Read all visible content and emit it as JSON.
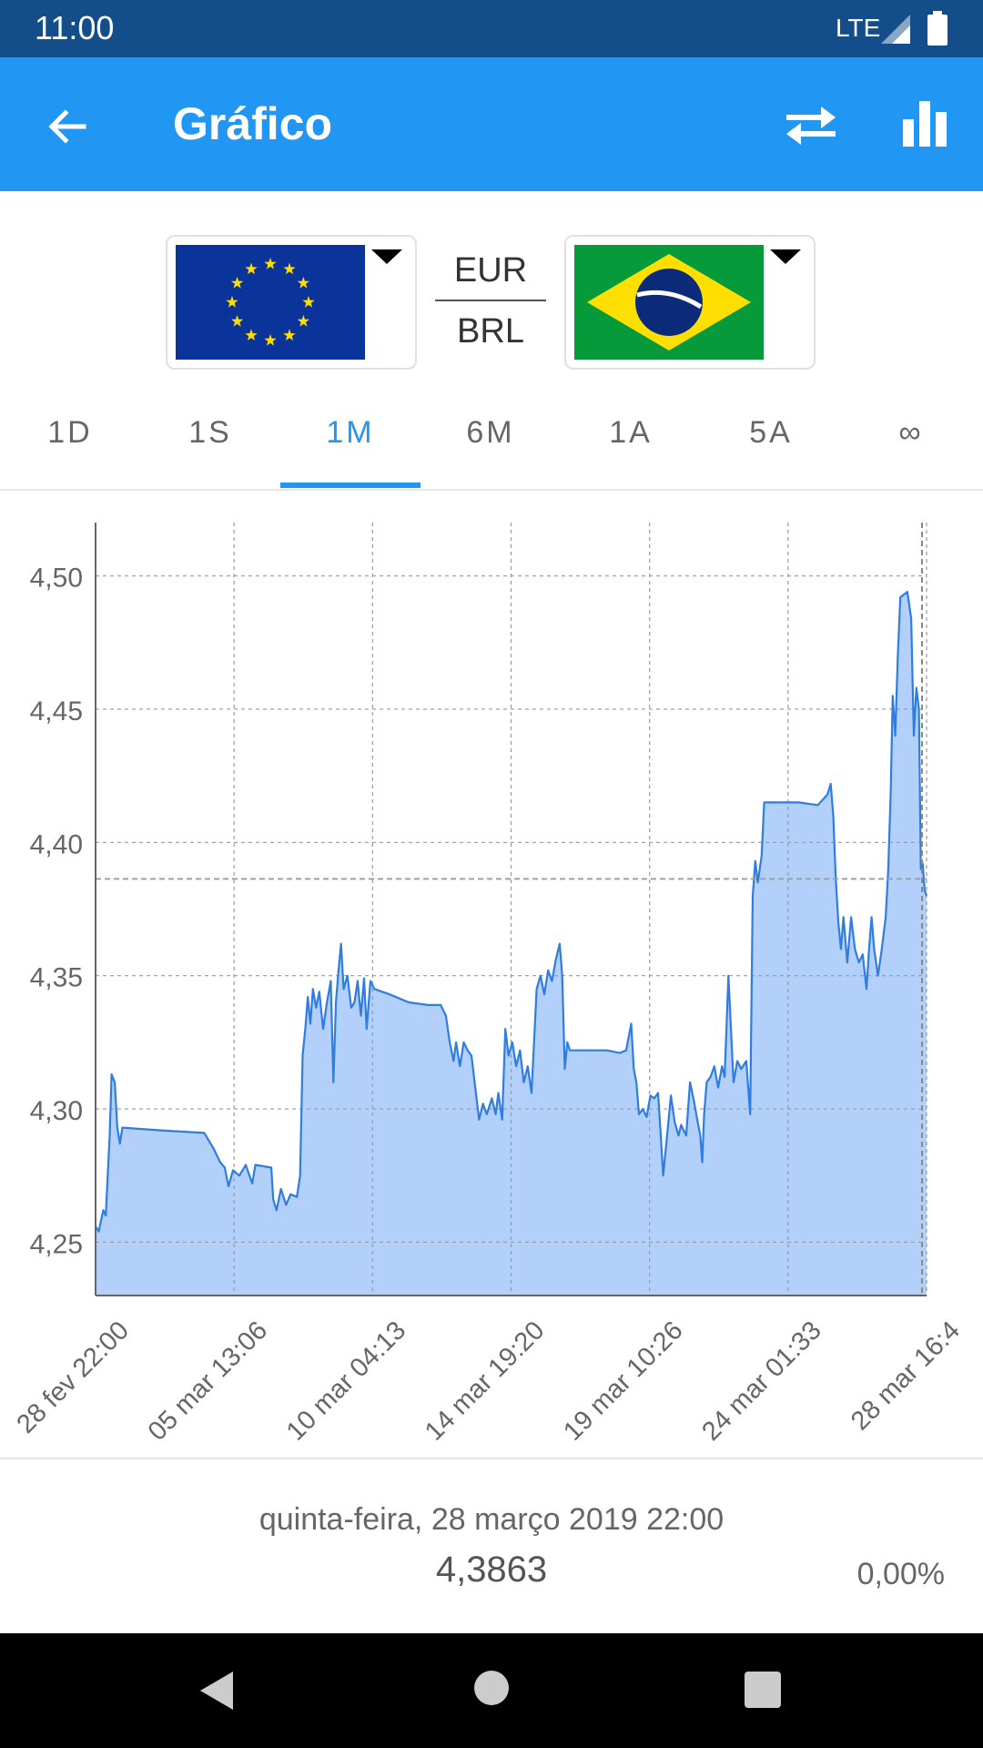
{
  "status": {
    "time": "11:00",
    "network": "LTE"
  },
  "appbar": {
    "title": "Gráfico",
    "back_icon": "arrow-left-icon",
    "swap_icon": "swap-arrows-icon",
    "chart_icon": "bar-chart-icon"
  },
  "currency": {
    "from": {
      "code": "EUR",
      "flag": "eu-flag"
    },
    "to": {
      "code": "BRL",
      "flag": "brazil-flag"
    }
  },
  "tabs": [
    "1D",
    "1S",
    "1M",
    "6M",
    "1A",
    "5A",
    "∞"
  ],
  "active_tab": "1M",
  "colors": {
    "accent": "#2196f3",
    "status_bar": "#134d8a",
    "line": "#2f7de1",
    "fill": "#b3d0fb"
  },
  "chart_data": {
    "type": "area",
    "ylim": [
      4.23,
      4.52
    ],
    "y_ticks": [
      "4,50",
      "4,45",
      "4,40",
      "4,35",
      "4,30",
      "4,25"
    ],
    "x_ticks": [
      "28 fev 22:00",
      "05 mar 13:06",
      "10 mar 04:13",
      "14 mar 19:20",
      "19 mar 10:26",
      "24 mar 01:33",
      "28 mar 16:4"
    ],
    "reference_value": 4.3863,
    "grid": true,
    "series": [
      {
        "values": [
          [
            0,
            4.256
          ],
          [
            0.5,
            4.254
          ],
          [
            1.2,
            4.262
          ],
          [
            1.6,
            4.26
          ],
          [
            2.2,
            4.29
          ],
          [
            2.5,
            4.313
          ],
          [
            3,
            4.31
          ],
          [
            3.4,
            4.293
          ],
          [
            3.8,
            4.287
          ],
          [
            4.2,
            4.293
          ],
          [
            10,
            4.292
          ],
          [
            17,
            4.291
          ],
          [
            18.5,
            4.285
          ],
          [
            19.5,
            4.28
          ],
          [
            20.2,
            4.278
          ],
          [
            20.8,
            4.271
          ],
          [
            21.5,
            4.277
          ],
          [
            22.5,
            4.275
          ],
          [
            23.5,
            4.279
          ],
          [
            24.5,
            4.272
          ],
          [
            25,
            4.279
          ],
          [
            27.5,
            4.278
          ],
          [
            27.8,
            4.266
          ],
          [
            28.3,
            4.262
          ],
          [
            29,
            4.27
          ],
          [
            29.8,
            4.264
          ],
          [
            30.5,
            4.268
          ],
          [
            31.5,
            4.267
          ],
          [
            32,
            4.275
          ],
          [
            32.4,
            4.32
          ],
          [
            32.8,
            4.33
          ],
          [
            33.2,
            4.342
          ],
          [
            33.6,
            4.332
          ],
          [
            34,
            4.345
          ],
          [
            34.5,
            4.338
          ],
          [
            35,
            4.344
          ],
          [
            35.6,
            4.33
          ],
          [
            36.2,
            4.34
          ],
          [
            36.8,
            4.348
          ],
          [
            37.2,
            4.31
          ],
          [
            37.6,
            4.34
          ],
          [
            38,
            4.352
          ],
          [
            38.4,
            4.362
          ],
          [
            38.8,
            4.345
          ],
          [
            39.4,
            4.35
          ],
          [
            40,
            4.338
          ],
          [
            40.5,
            4.34
          ],
          [
            41,
            4.348
          ],
          [
            41.5,
            4.335
          ],
          [
            42,
            4.349
          ],
          [
            42.4,
            4.33
          ],
          [
            43,
            4.348
          ],
          [
            43.6,
            4.345
          ],
          [
            46,
            4.343
          ],
          [
            49,
            4.34
          ],
          [
            52,
            4.339
          ],
          [
            54,
            4.339
          ],
          [
            54.8,
            4.335
          ],
          [
            55.4,
            4.325
          ],
          [
            56,
            4.318
          ],
          [
            56.4,
            4.325
          ],
          [
            57,
            4.316
          ],
          [
            57.6,
            4.325
          ],
          [
            58.2,
            4.322
          ],
          [
            58.8,
            4.32
          ],
          [
            59.4,
            4.308
          ],
          [
            60,
            4.296
          ],
          [
            60.6,
            4.302
          ],
          [
            61.2,
            4.298
          ],
          [
            62,
            4.304
          ],
          [
            62.6,
            4.298
          ],
          [
            63,
            4.306
          ],
          [
            63.6,
            4.296
          ],
          [
            64.1,
            4.33
          ],
          [
            64.6,
            4.32
          ],
          [
            65.2,
            4.325
          ],
          [
            65.8,
            4.316
          ],
          [
            66.4,
            4.322
          ],
          [
            67,
            4.31
          ],
          [
            67.6,
            4.316
          ],
          [
            68.2,
            4.306
          ],
          [
            69,
            4.345
          ],
          [
            69.6,
            4.35
          ],
          [
            70.2,
            4.343
          ],
          [
            70.8,
            4.352
          ],
          [
            71.4,
            4.348
          ],
          [
            72,
            4.356
          ],
          [
            72.6,
            4.362
          ],
          [
            73,
            4.35
          ],
          [
            73.4,
            4.315
          ],
          [
            73.8,
            4.325
          ],
          [
            74.2,
            4.322
          ],
          [
            77,
            4.322
          ],
          [
            80,
            4.322
          ],
          [
            82,
            4.321
          ],
          [
            83,
            4.322
          ],
          [
            83.8,
            4.332
          ],
          [
            84.2,
            4.315
          ],
          [
            84.6,
            4.31
          ],
          [
            85,
            4.298
          ],
          [
            85.6,
            4.3
          ],
          [
            86.2,
            4.297
          ],
          [
            86.8,
            4.305
          ],
          [
            87.4,
            4.304
          ],
          [
            88,
            4.306
          ],
          [
            88.4,
            4.291
          ],
          [
            88.8,
            4.275
          ],
          [
            89.4,
            4.29
          ],
          [
            90,
            4.305
          ],
          [
            90.6,
            4.295
          ],
          [
            91.2,
            4.29
          ],
          [
            91.6,
            4.294
          ],
          [
            92.4,
            4.29
          ],
          [
            93,
            4.31
          ],
          [
            93.6,
            4.303
          ],
          [
            94.2,
            4.295
          ],
          [
            94.6,
            4.29
          ],
          [
            94.9,
            4.28
          ],
          [
            95.2,
            4.298
          ],
          [
            95.6,
            4.31
          ],
          [
            96.2,
            4.312
          ],
          [
            96.8,
            4.316
          ],
          [
            97.4,
            4.308
          ],
          [
            98,
            4.316
          ],
          [
            98.4,
            4.312
          ],
          [
            99,
            4.35
          ],
          [
            99.4,
            4.33
          ],
          [
            99.8,
            4.31
          ],
          [
            100.4,
            4.318
          ],
          [
            101,
            4.315
          ],
          [
            101.8,
            4.318
          ],
          [
            102.4,
            4.298
          ],
          [
            102.8,
            4.38
          ],
          [
            103.2,
            4.393
          ],
          [
            103.6,
            4.385
          ],
          [
            104.2,
            4.395
          ],
          [
            104.6,
            4.415
          ],
          [
            106,
            4.415
          ],
          [
            110,
            4.415
          ],
          [
            113,
            4.414
          ],
          [
            114.5,
            4.418
          ],
          [
            115,
            4.422
          ],
          [
            115.4,
            4.41
          ],
          [
            115.8,
            4.386
          ],
          [
            116.2,
            4.37
          ],
          [
            116.6,
            4.36
          ],
          [
            117,
            4.372
          ],
          [
            117.6,
            4.355
          ],
          [
            118.2,
            4.372
          ],
          [
            118.8,
            4.36
          ],
          [
            119.4,
            4.355
          ],
          [
            120,
            4.358
          ],
          [
            120.6,
            4.345
          ],
          [
            121,
            4.36
          ],
          [
            121.4,
            4.372
          ],
          [
            121.8,
            4.36
          ],
          [
            122.4,
            4.35
          ],
          [
            123,
            4.36
          ],
          [
            123.6,
            4.372
          ],
          [
            124,
            4.39
          ],
          [
            124.4,
            4.42
          ],
          [
            124.7,
            4.455
          ],
          [
            125.1,
            4.44
          ],
          [
            125.5,
            4.47
          ],
          [
            125.9,
            4.492
          ],
          [
            127,
            4.494
          ],
          [
            127.6,
            4.484
          ],
          [
            128,
            4.44
          ],
          [
            128.4,
            4.458
          ],
          [
            128.8,
            4.45
          ],
          [
            129.1,
            4.39
          ],
          [
            129.4,
            4.392
          ],
          [
            129.7,
            4.382
          ],
          [
            130,
            4.38
          ]
        ]
      }
    ]
  },
  "footer": {
    "date": "quinta-feira, 28 março 2019 22:00",
    "value": "4,3863",
    "change": "0,00%"
  }
}
